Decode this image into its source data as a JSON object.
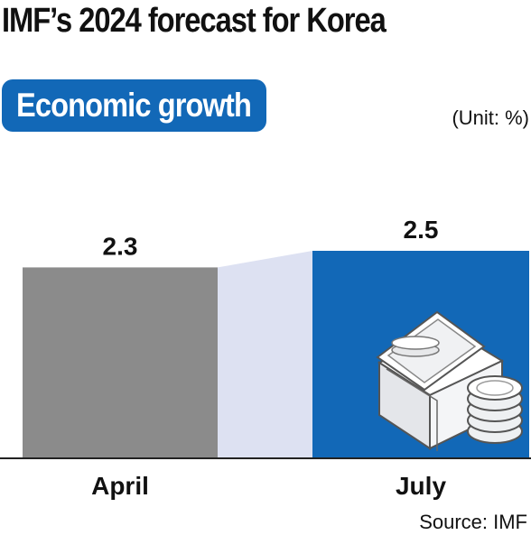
{
  "title": "IMF’s 2024 forecast for Korea",
  "subtitle_badge": "Economic growth",
  "unit_label": "(Unit: %)",
  "source": "Source: IMF",
  "colors": {
    "badge": "#1268b7",
    "april_bar": "#8b8b8b",
    "july_bar": "#1268b7",
    "connector": "#dde1f2",
    "axis": "#222222"
  },
  "chart_data": {
    "type": "bar",
    "title": "IMF’s 2024 forecast for Korea",
    "subtitle": "Economic growth",
    "unit": "(Unit: %)",
    "categories": [
      "April",
      "July"
    ],
    "values": [
      2.3,
      2.5
    ],
    "value_labels": [
      "2.3",
      "2.5"
    ],
    "xlabel": "",
    "ylabel": "",
    "grid": false,
    "legend": "none",
    "decoration": "money-stack-and-coins-icon"
  }
}
